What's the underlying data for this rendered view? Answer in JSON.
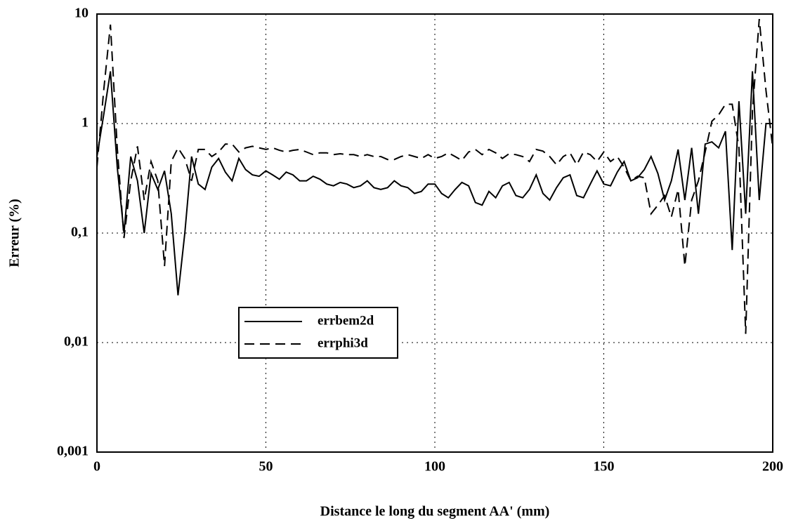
{
  "chart_data": {
    "type": "line",
    "xlabel": "Distance le long du segment AA' (mm)",
    "ylabel": "Erreur (%)",
    "x": [
      0,
      2,
      4,
      6,
      8,
      10,
      12,
      14,
      16,
      18,
      20,
      22,
      24,
      26,
      28,
      30,
      32,
      34,
      36,
      38,
      40,
      42,
      44,
      46,
      48,
      50,
      52,
      54,
      56,
      58,
      60,
      62,
      64,
      66,
      68,
      70,
      72,
      74,
      76,
      78,
      80,
      82,
      84,
      86,
      88,
      90,
      92,
      94,
      96,
      98,
      100,
      102,
      104,
      106,
      108,
      110,
      112,
      114,
      116,
      118,
      120,
      122,
      124,
      126,
      128,
      130,
      132,
      134,
      136,
      138,
      140,
      142,
      144,
      146,
      148,
      150,
      152,
      154,
      156,
      158,
      160,
      162,
      164,
      166,
      168,
      170,
      172,
      174,
      176,
      178,
      180,
      182,
      184,
      186,
      188,
      190,
      192,
      194,
      196,
      198,
      200
    ],
    "series": [
      {
        "name": "errbem2d",
        "color": "#000000",
        "dash": "solid",
        "values": [
          0.5,
          1.2,
          3,
          0.4,
          0.1,
          0.5,
          0.3,
          0.1,
          0.35,
          0.25,
          0.37,
          0.15,
          0.027,
          0.1,
          0.5,
          0.28,
          0.25,
          0.4,
          0.48,
          0.36,
          0.3,
          0.48,
          0.38,
          0.34,
          0.33,
          0.37,
          0.34,
          0.31,
          0.36,
          0.34,
          0.3,
          0.3,
          0.33,
          0.31,
          0.28,
          0.27,
          0.29,
          0.28,
          0.26,
          0.27,
          0.3,
          0.26,
          0.25,
          0.26,
          0.3,
          0.27,
          0.26,
          0.23,
          0.24,
          0.28,
          0.28,
          0.23,
          0.21,
          0.25,
          0.29,
          0.27,
          0.19,
          0.18,
          0.24,
          0.21,
          0.27,
          0.29,
          0.22,
          0.21,
          0.25,
          0.34,
          0.23,
          0.2,
          0.26,
          0.32,
          0.34,
          0.22,
          0.21,
          0.28,
          0.37,
          0.28,
          0.27,
          0.36,
          0.45,
          0.3,
          0.32,
          0.38,
          0.5,
          0.35,
          0.2,
          0.3,
          0.58,
          0.2,
          0.6,
          0.15,
          0.65,
          0.68,
          0.6,
          0.85,
          0.07,
          1.6,
          0.15,
          3,
          0.2,
          1,
          1
        ]
      },
      {
        "name": "errphi3d",
        "color": "#000000",
        "dash": "dashed",
        "values": [
          0.4,
          2,
          8,
          0.6,
          0.09,
          0.3,
          0.62,
          0.2,
          0.45,
          0.3,
          0.05,
          0.45,
          0.6,
          0.48,
          0.3,
          0.58,
          0.58,
          0.5,
          0.55,
          0.65,
          0.65,
          0.55,
          0.6,
          0.62,
          0.6,
          0.58,
          0.6,
          0.57,
          0.55,
          0.57,
          0.58,
          0.55,
          0.52,
          0.54,
          0.54,
          0.52,
          0.53,
          0.52,
          0.52,
          0.5,
          0.52,
          0.5,
          0.5,
          0.47,
          0.47,
          0.5,
          0.52,
          0.5,
          0.48,
          0.52,
          0.48,
          0.5,
          0.54,
          0.5,
          0.46,
          0.55,
          0.58,
          0.52,
          0.58,
          0.54,
          0.48,
          0.53,
          0.52,
          0.5,
          0.45,
          0.58,
          0.56,
          0.5,
          0.42,
          0.5,
          0.54,
          0.42,
          0.55,
          0.52,
          0.45,
          0.55,
          0.45,
          0.5,
          0.4,
          0.3,
          0.33,
          0.32,
          0.15,
          0.18,
          0.22,
          0.14,
          0.25,
          0.05,
          0.2,
          0.3,
          0.55,
          1.05,
          1.2,
          1.5,
          1.5,
          0.6,
          0.012,
          1.3,
          9,
          2,
          0.6
        ]
      }
    ],
    "xlim": [
      0,
      200
    ],
    "xticks": [
      0,
      50,
      100,
      150,
      200
    ],
    "ylim": [
      0.001,
      10
    ],
    "ylog": true,
    "yticks": [
      {
        "value": 0.001,
        "label": "0,001"
      },
      {
        "value": 0.01,
        "label": "0,01"
      },
      {
        "value": 0.1,
        "label": "0,1"
      },
      1,
      10
    ],
    "grid": true,
    "legend": "center"
  }
}
